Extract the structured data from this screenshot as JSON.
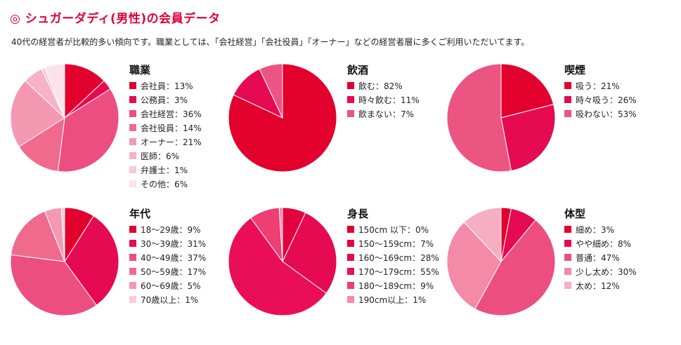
{
  "page": {
    "title": "◎ シュガーダディ(男性)の会員データ",
    "intro": "40代の経営者が比較的多い傾向です。職業としては、「会社経営」「会社役員」「オーナー」などの経営者層に多くご利用いただいてます。"
  },
  "chart_data": [
    {
      "type": "pie",
      "title": "職業",
      "categories": [
        "会社員",
        "公務員",
        "会社経営",
        "会社役員",
        "オーナー",
        "医師",
        "弁護士",
        "その他"
      ],
      "values": [
        13,
        3,
        36,
        14,
        21,
        6,
        1,
        6
      ],
      "labels": [
        "会社員：13%",
        "公務員：3%",
        "会社経営：36%",
        "会社役員：14%",
        "オーナー：21%",
        "医師：6%",
        "弁護士：1%",
        "その他：6%"
      ],
      "colors": [
        "#e2002d",
        "#e60a52",
        "#ec4f7f",
        "#f06a8e",
        "#f599b3",
        "#f6b3c6",
        "#f9cad8",
        "#fce3eb"
      ]
    },
    {
      "type": "pie",
      "title": "飲酒",
      "categories": [
        "飲む",
        "時々飲む",
        "飲まない"
      ],
      "values": [
        82,
        11,
        7
      ],
      "labels": [
        "飲む：82%",
        "時々飲む：11%",
        "飲まない：7%"
      ],
      "colors": [
        "#e2002d",
        "#e60a52",
        "#ec5582"
      ]
    },
    {
      "type": "pie",
      "title": "喫煙",
      "categories": [
        "吸う",
        "時々吸う",
        "吸わない"
      ],
      "values": [
        21,
        26,
        53
      ],
      "labels": [
        "吸う：21%",
        "時々吸う：26%",
        "吸わない：53%"
      ],
      "colors": [
        "#e2002d",
        "#e60a52",
        "#ec5582"
      ]
    },
    {
      "type": "pie",
      "title": "年代",
      "categories": [
        "18〜29歳",
        "30〜39歳",
        "40〜49歳",
        "50〜59歳",
        "60〜69歳",
        "70歳以上"
      ],
      "values": [
        9,
        31,
        37,
        17,
        5,
        1
      ],
      "labels": [
        "18〜29歳：9%",
        "30〜39歳：31%",
        "40〜49歳：37%",
        "50〜59歳：17%",
        "60〜69歳：5%",
        "70歳以上：1%"
      ],
      "colors": [
        "#e2002d",
        "#e60a52",
        "#ec4f7f",
        "#f06a8e",
        "#f599b3",
        "#f9cad8"
      ]
    },
    {
      "type": "pie",
      "title": "身長",
      "categories": [
        "150cm 以下",
        "150〜159cm",
        "160〜169cm",
        "170〜179cm",
        "180〜189cm",
        "190cm以上"
      ],
      "values": [
        0,
        7,
        28,
        55,
        9,
        1
      ],
      "labels": [
        "150cm 以下：0%",
        "150〜159cm：7%",
        "160〜169cm：28%",
        "170〜179cm：55%",
        "180〜189cm：9%",
        "190cm以上：1%"
      ],
      "colors": [
        "#e2002d",
        "#e4003e",
        "#e60a52",
        "#ea0e58",
        "#ee3e72",
        "#f28aa8"
      ]
    },
    {
      "type": "pie",
      "title": "体型",
      "categories": [
        "細め",
        "やや細め",
        "普通",
        "少し太め",
        "太め"
      ],
      "values": [
        3,
        8,
        47,
        30,
        12
      ],
      "labels": [
        "細め：3%",
        "やや細め：8%",
        "普通：47%",
        "少し太め：30%",
        "太め：12%"
      ],
      "colors": [
        "#e2002d",
        "#e60a52",
        "#ec4f7f",
        "#f28aa8",
        "#f6aec3"
      ]
    }
  ]
}
